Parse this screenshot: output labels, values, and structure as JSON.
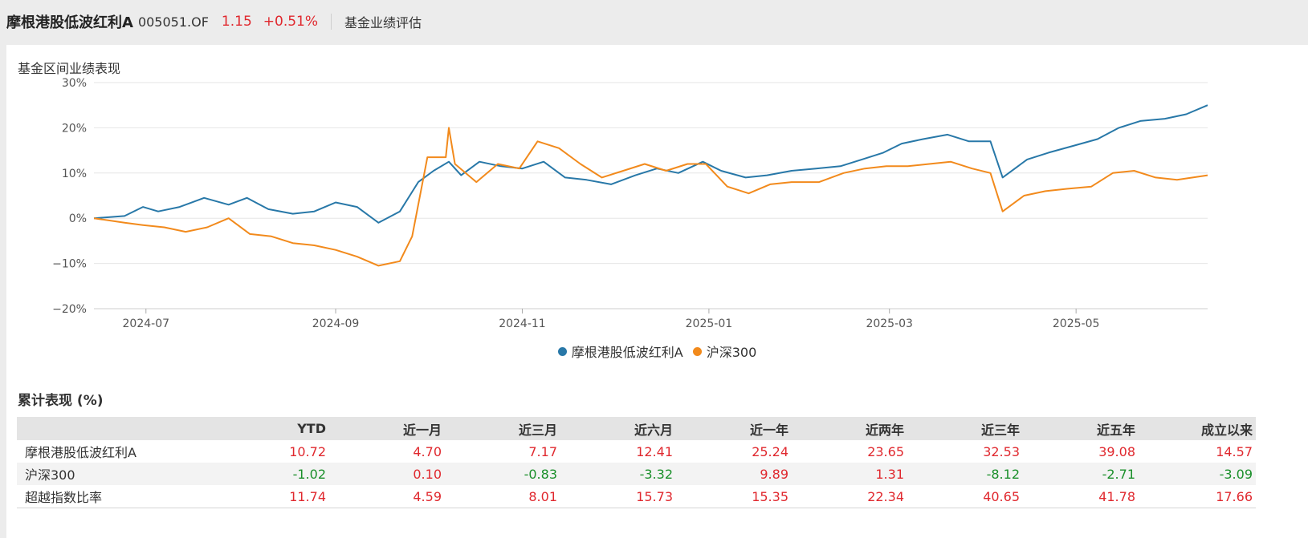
{
  "header": {
    "fund_name": "摩根港股低波红利A",
    "fund_code": "005051.OF",
    "nav": "1.15",
    "change": "+0.51%",
    "eval_link": "基金业绩评估"
  },
  "chart_title": "基金区间业绩表现",
  "chart_data": {
    "type": "line",
    "title": "基金区间业绩表现",
    "x_ticks": [
      "2024-07",
      "2024-09",
      "2024-11",
      "2025-01",
      "2025-03",
      "2025-05"
    ],
    "x_range": [
      "2024-06-14",
      "2025-06-13"
    ],
    "y_ticks": [
      "30%",
      "20%",
      "10%",
      "0%",
      "−10%",
      "−20%"
    ],
    "ylim": [
      -20,
      30
    ],
    "grid": true,
    "legend_position": "bottom",
    "series": [
      {
        "name": "摩根港股低波红利A",
        "color": "#2878a8",
        "points": [
          [
            "2024-06-14",
            0
          ],
          [
            "2024-06-24",
            0.5
          ],
          [
            "2024-06-30",
            2.5
          ],
          [
            "2024-07-05",
            1.5
          ],
          [
            "2024-07-12",
            2.5
          ],
          [
            "2024-07-20",
            4.5
          ],
          [
            "2024-07-28",
            3.0
          ],
          [
            "2024-08-03",
            4.5
          ],
          [
            "2024-08-10",
            2.0
          ],
          [
            "2024-08-18",
            1.0
          ],
          [
            "2024-08-25",
            1.5
          ],
          [
            "2024-09-01",
            3.5
          ],
          [
            "2024-09-08",
            2.5
          ],
          [
            "2024-09-15",
            -1.0
          ],
          [
            "2024-09-22",
            1.5
          ],
          [
            "2024-09-28",
            8.0
          ],
          [
            "2024-10-03",
            10.5
          ],
          [
            "2024-10-08",
            12.5
          ],
          [
            "2024-10-12",
            9.5
          ],
          [
            "2024-10-18",
            12.5
          ],
          [
            "2024-10-25",
            11.5
          ],
          [
            "2024-11-01",
            11.0
          ],
          [
            "2024-11-08",
            12.5
          ],
          [
            "2024-11-15",
            9.0
          ],
          [
            "2024-11-22",
            8.5
          ],
          [
            "2024-11-30",
            7.5
          ],
          [
            "2024-12-08",
            9.5
          ],
          [
            "2024-12-15",
            11.0
          ],
          [
            "2024-12-22",
            10.0
          ],
          [
            "2024-12-30",
            12.5
          ],
          [
            "2025-01-05",
            10.5
          ],
          [
            "2025-01-13",
            9.0
          ],
          [
            "2025-01-20",
            9.5
          ],
          [
            "2025-01-28",
            10.5
          ],
          [
            "2025-02-05",
            11.0
          ],
          [
            "2025-02-13",
            11.5
          ],
          [
            "2025-02-20",
            13.0
          ],
          [
            "2025-02-27",
            14.5
          ],
          [
            "2025-03-05",
            16.5
          ],
          [
            "2025-03-12",
            17.5
          ],
          [
            "2025-03-20",
            18.5
          ],
          [
            "2025-03-27",
            17.0
          ],
          [
            "2025-04-03",
            17.0
          ],
          [
            "2025-04-07",
            9.0
          ],
          [
            "2025-04-15",
            13.0
          ],
          [
            "2025-04-22",
            14.5
          ],
          [
            "2025-04-30",
            16.0
          ],
          [
            "2025-05-08",
            17.5
          ],
          [
            "2025-05-15",
            20.0
          ],
          [
            "2025-05-22",
            21.5
          ],
          [
            "2025-05-30",
            22.0
          ],
          [
            "2025-06-06",
            23.0
          ],
          [
            "2025-06-13",
            25.0
          ]
        ]
      },
      {
        "name": "沪深300",
        "color": "#f28a1c",
        "points": [
          [
            "2024-06-14",
            0
          ],
          [
            "2024-06-24",
            -1.0
          ],
          [
            "2024-06-30",
            -1.5
          ],
          [
            "2024-07-07",
            -2.0
          ],
          [
            "2024-07-14",
            -3.0
          ],
          [
            "2024-07-21",
            -2.0
          ],
          [
            "2024-07-28",
            0.0
          ],
          [
            "2024-08-04",
            -3.5
          ],
          [
            "2024-08-11",
            -4.0
          ],
          [
            "2024-08-18",
            -5.5
          ],
          [
            "2024-08-25",
            -6.0
          ],
          [
            "2024-09-01",
            -7.0
          ],
          [
            "2024-09-08",
            -8.5
          ],
          [
            "2024-09-15",
            -10.5
          ],
          [
            "2024-09-22",
            -9.5
          ],
          [
            "2024-09-26",
            -4.0
          ],
          [
            "2024-10-01",
            13.5
          ],
          [
            "2024-10-07",
            13.5
          ],
          [
            "2024-10-08",
            20.0
          ],
          [
            "2024-10-10",
            12.0
          ],
          [
            "2024-10-17",
            8.0
          ],
          [
            "2024-10-24",
            12.0
          ],
          [
            "2024-10-31",
            11.0
          ],
          [
            "2024-11-06",
            17.0
          ],
          [
            "2024-11-13",
            15.5
          ],
          [
            "2024-11-20",
            12.0
          ],
          [
            "2024-11-27",
            9.0
          ],
          [
            "2024-12-04",
            10.5
          ],
          [
            "2024-12-11",
            12.0
          ],
          [
            "2024-12-18",
            10.5
          ],
          [
            "2024-12-25",
            12.0
          ],
          [
            "2024-12-31",
            12.0
          ],
          [
            "2025-01-07",
            7.0
          ],
          [
            "2025-01-14",
            5.5
          ],
          [
            "2025-01-21",
            7.5
          ],
          [
            "2025-01-28",
            8.0
          ],
          [
            "2025-02-06",
            8.0
          ],
          [
            "2025-02-14",
            10.0
          ],
          [
            "2025-02-21",
            11.0
          ],
          [
            "2025-02-28",
            11.5
          ],
          [
            "2025-03-07",
            11.5
          ],
          [
            "2025-03-14",
            12.0
          ],
          [
            "2025-03-21",
            12.5
          ],
          [
            "2025-03-28",
            11.0
          ],
          [
            "2025-04-03",
            10.0
          ],
          [
            "2025-04-07",
            1.5
          ],
          [
            "2025-04-14",
            5.0
          ],
          [
            "2025-04-21",
            6.0
          ],
          [
            "2025-04-28",
            6.5
          ],
          [
            "2025-05-06",
            7.0
          ],
          [
            "2025-05-13",
            10.0
          ],
          [
            "2025-05-20",
            10.5
          ],
          [
            "2025-05-27",
            9.0
          ],
          [
            "2025-06-03",
            8.5
          ],
          [
            "2025-06-13",
            9.5
          ]
        ]
      }
    ]
  },
  "table": {
    "title": "累计表现 (%)",
    "columns": [
      "",
      "YTD",
      "近一月",
      "近三月",
      "近六月",
      "近一年",
      "近两年",
      "近三年",
      "近五年",
      "成立以来"
    ],
    "rows": [
      {
        "name": "摩根港股低波红利A",
        "values": [
          "10.72",
          "4.70",
          "7.17",
          "12.41",
          "25.24",
          "23.65",
          "32.53",
          "39.08",
          "14.57"
        ]
      },
      {
        "name": "沪深300",
        "values": [
          "-1.02",
          "0.10",
          "-0.83",
          "-3.32",
          "9.89",
          "1.31",
          "-8.12",
          "-2.71",
          "-3.09"
        ]
      },
      {
        "name": "超越指数比率",
        "values": [
          "11.74",
          "4.59",
          "8.01",
          "15.73",
          "15.35",
          "22.34",
          "40.65",
          "41.78",
          "17.66"
        ]
      }
    ]
  }
}
